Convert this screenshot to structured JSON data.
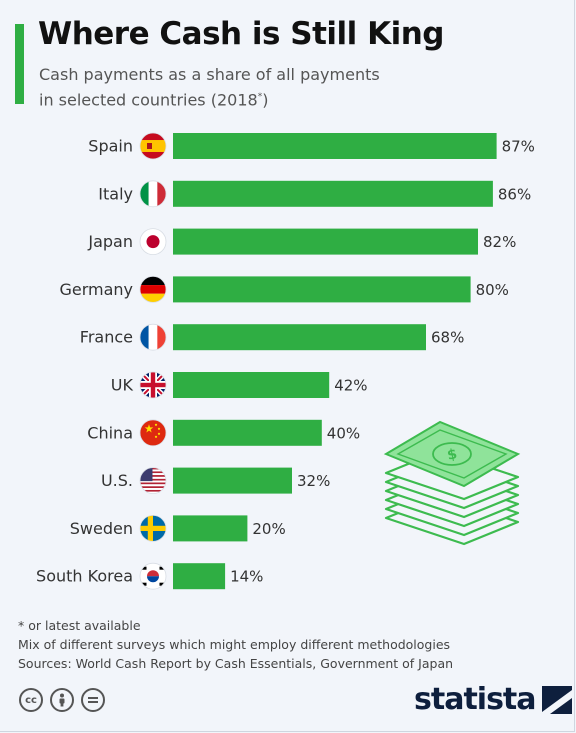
{
  "header": {
    "title": "Where Cash is Still King",
    "subtitle_line1": "Cash payments as a share of all payments",
    "subtitle_line2": "in selected countries (2018",
    "subtitle_star": "*",
    "subtitle_close": ")"
  },
  "chart_data": {
    "type": "bar",
    "orientation": "horizontal",
    "categories": [
      "Spain",
      "Italy",
      "Japan",
      "Germany",
      "France",
      "UK",
      "China",
      "U.S.",
      "Sweden",
      "South Korea"
    ],
    "values": [
      87,
      86,
      82,
      80,
      68,
      42,
      40,
      32,
      20,
      14
    ],
    "value_labels": [
      "87%",
      "86%",
      "82%",
      "80%",
      "68%",
      "42%",
      "40%",
      "32%",
      "20%",
      "14%"
    ],
    "flags": [
      "spain-flag-icon",
      "italy-flag-icon",
      "japan-flag-icon",
      "germany-flag-icon",
      "france-flag-icon",
      "uk-flag-icon",
      "china-flag-icon",
      "us-flag-icon",
      "sweden-flag-icon",
      "south-korea-flag-icon"
    ],
    "unit": "%",
    "xlim": [
      0,
      100
    ],
    "grid": false,
    "legend": "none",
    "bar_color": "#2fae43"
  },
  "footer": {
    "note1": "* or latest available",
    "note2": "Mix of different surveys which might employ different methodologies",
    "note3": "Sources: World Cash Report by Cash Essentials, Government of Japan",
    "brand": "statista",
    "license_icons": [
      "cc-icon",
      "attribution-icon",
      "no-derivatives-icon"
    ]
  },
  "colors": {
    "accent": "#2fae43",
    "background": "#f2f5fa",
    "brand_navy": "#0e1f3d"
  }
}
